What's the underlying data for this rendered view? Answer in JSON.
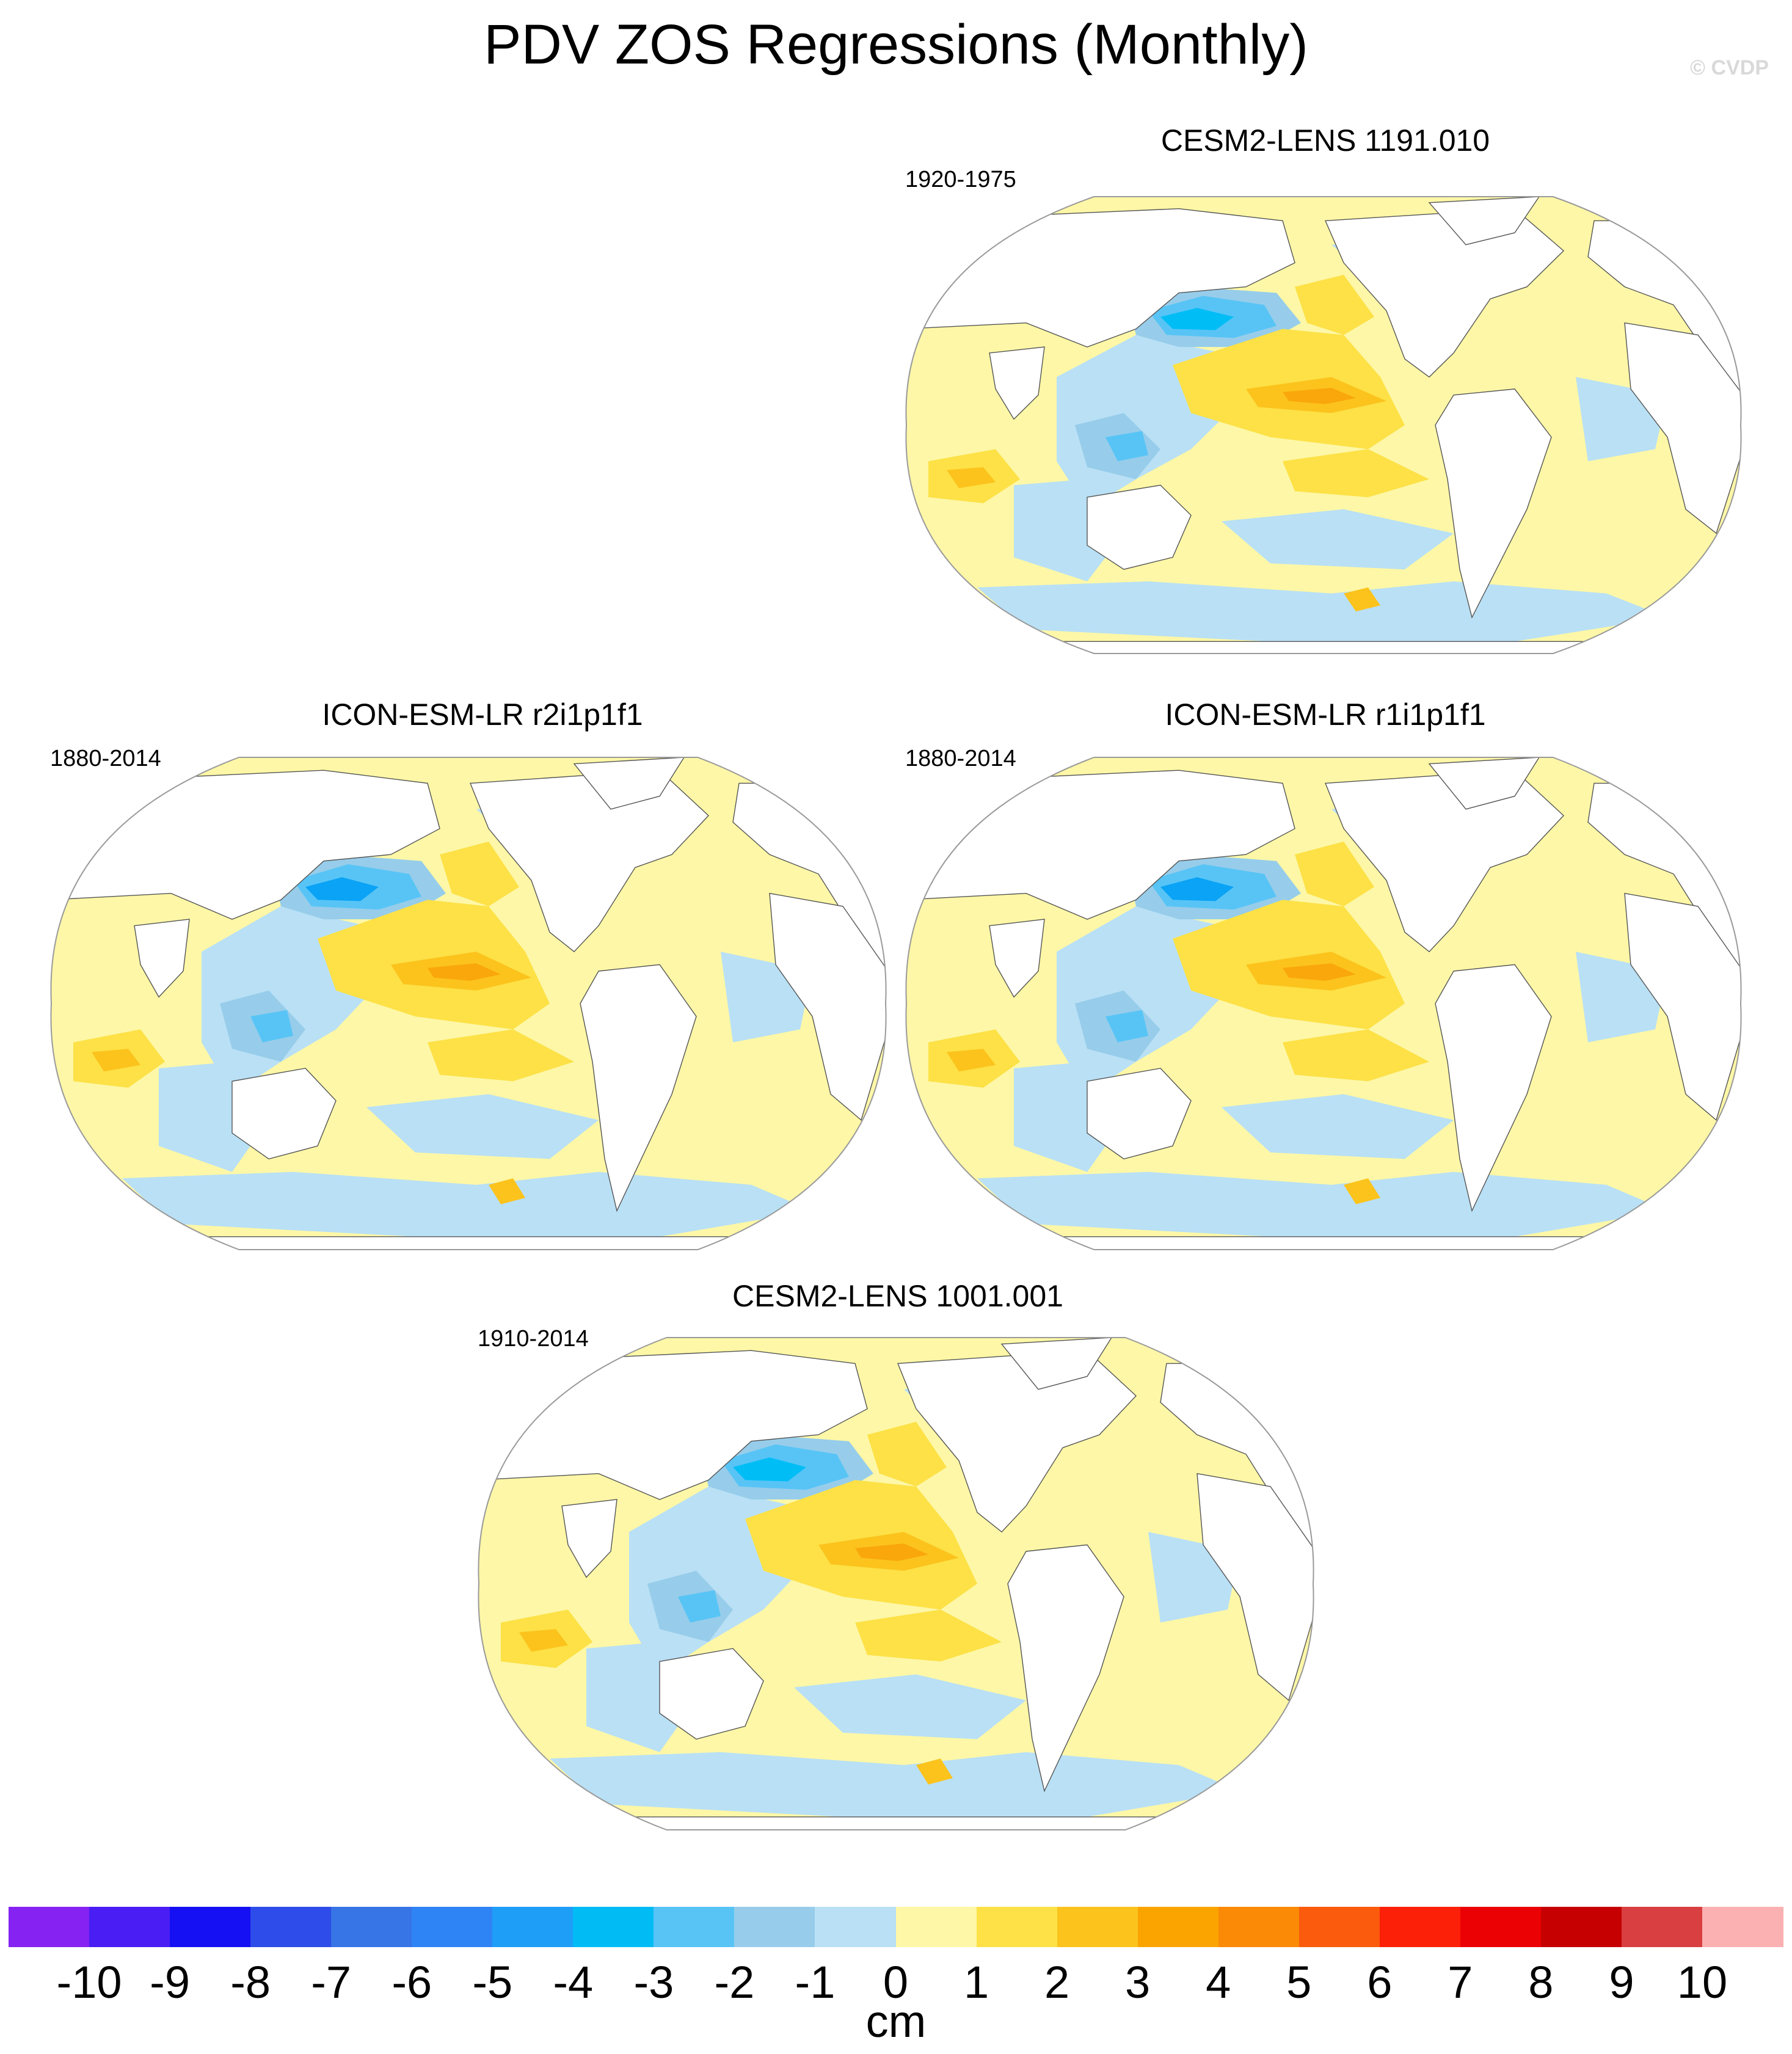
{
  "title": "PDV ZOS Regressions (Monthly)",
  "watermark": "© CVDP",
  "panels": [
    {
      "id": "p1",
      "title": "CESM2-LENS 1191.010",
      "period": "1920-1975",
      "colors": {
        "ocean": "#fdf7a7",
        "neg1": "#b9e0f5",
        "neg2": "#97cdea",
        "neg3": "#58c4f6",
        "neg4": "#00bdf5",
        "pos2": "#fde146",
        "pos3": "#fcc31d",
        "pos4": "#f9a70a"
      }
    },
    {
      "id": "p2",
      "title": "ICON-ESM-LR r2i1p1f1",
      "period": "1880-2014",
      "colors": {
        "ocean": "#fdf7a7",
        "neg1": "#b9e0f5",
        "neg2": "#97cdea",
        "neg3": "#58c4f6",
        "neg4": "#0aa3f5",
        "pos2": "#fde146",
        "pos3": "#fcc31d",
        "pos4": "#f9a70a"
      }
    },
    {
      "id": "p3",
      "title": "ICON-ESM-LR r1i1p1f1",
      "period": "1880-2014",
      "colors": {
        "ocean": "#fdf7a7",
        "neg1": "#b9e0f5",
        "neg2": "#97cdea",
        "neg3": "#58c4f6",
        "neg4": "#0aa3f5",
        "pos2": "#fde146",
        "pos3": "#fcc31d",
        "pos4": "#f9a70a"
      }
    },
    {
      "id": "p4",
      "title": "CESM2-LENS 1001.001",
      "period": "1910-2014",
      "colors": {
        "ocean": "#fdf7a7",
        "neg1": "#b9e0f5",
        "neg2": "#97cdea",
        "neg3": "#58c4f6",
        "neg4": "#00bdf5",
        "pos2": "#fde146",
        "pos3": "#fcc31d",
        "pos4": "#f9a70a"
      }
    }
  ],
  "colorbar": {
    "unit": "cm",
    "colors": [
      "#8623f2",
      "#4a1df4",
      "#1410f3",
      "#2d4ce9",
      "#3774e6",
      "#2f84f5",
      "#1f9ef7",
      "#00bbf4",
      "#58c4f6",
      "#97cdea",
      "#b9e0f5",
      "#fdf7a7",
      "#fde146",
      "#fcc31d",
      "#fba400",
      "#fb8a07",
      "#fb5b0c",
      "#fc2009",
      "#eb0003",
      "#c60000",
      "#d93f40",
      "#fbb1b1"
    ],
    "ticks": [
      "-10",
      "-9",
      "-8",
      "-7",
      "-6",
      "-5",
      "-4",
      "-3",
      "-2",
      "-1",
      "0",
      "1",
      "2",
      "3",
      "4",
      "5",
      "6",
      "7",
      "8",
      "9",
      "10"
    ]
  }
}
